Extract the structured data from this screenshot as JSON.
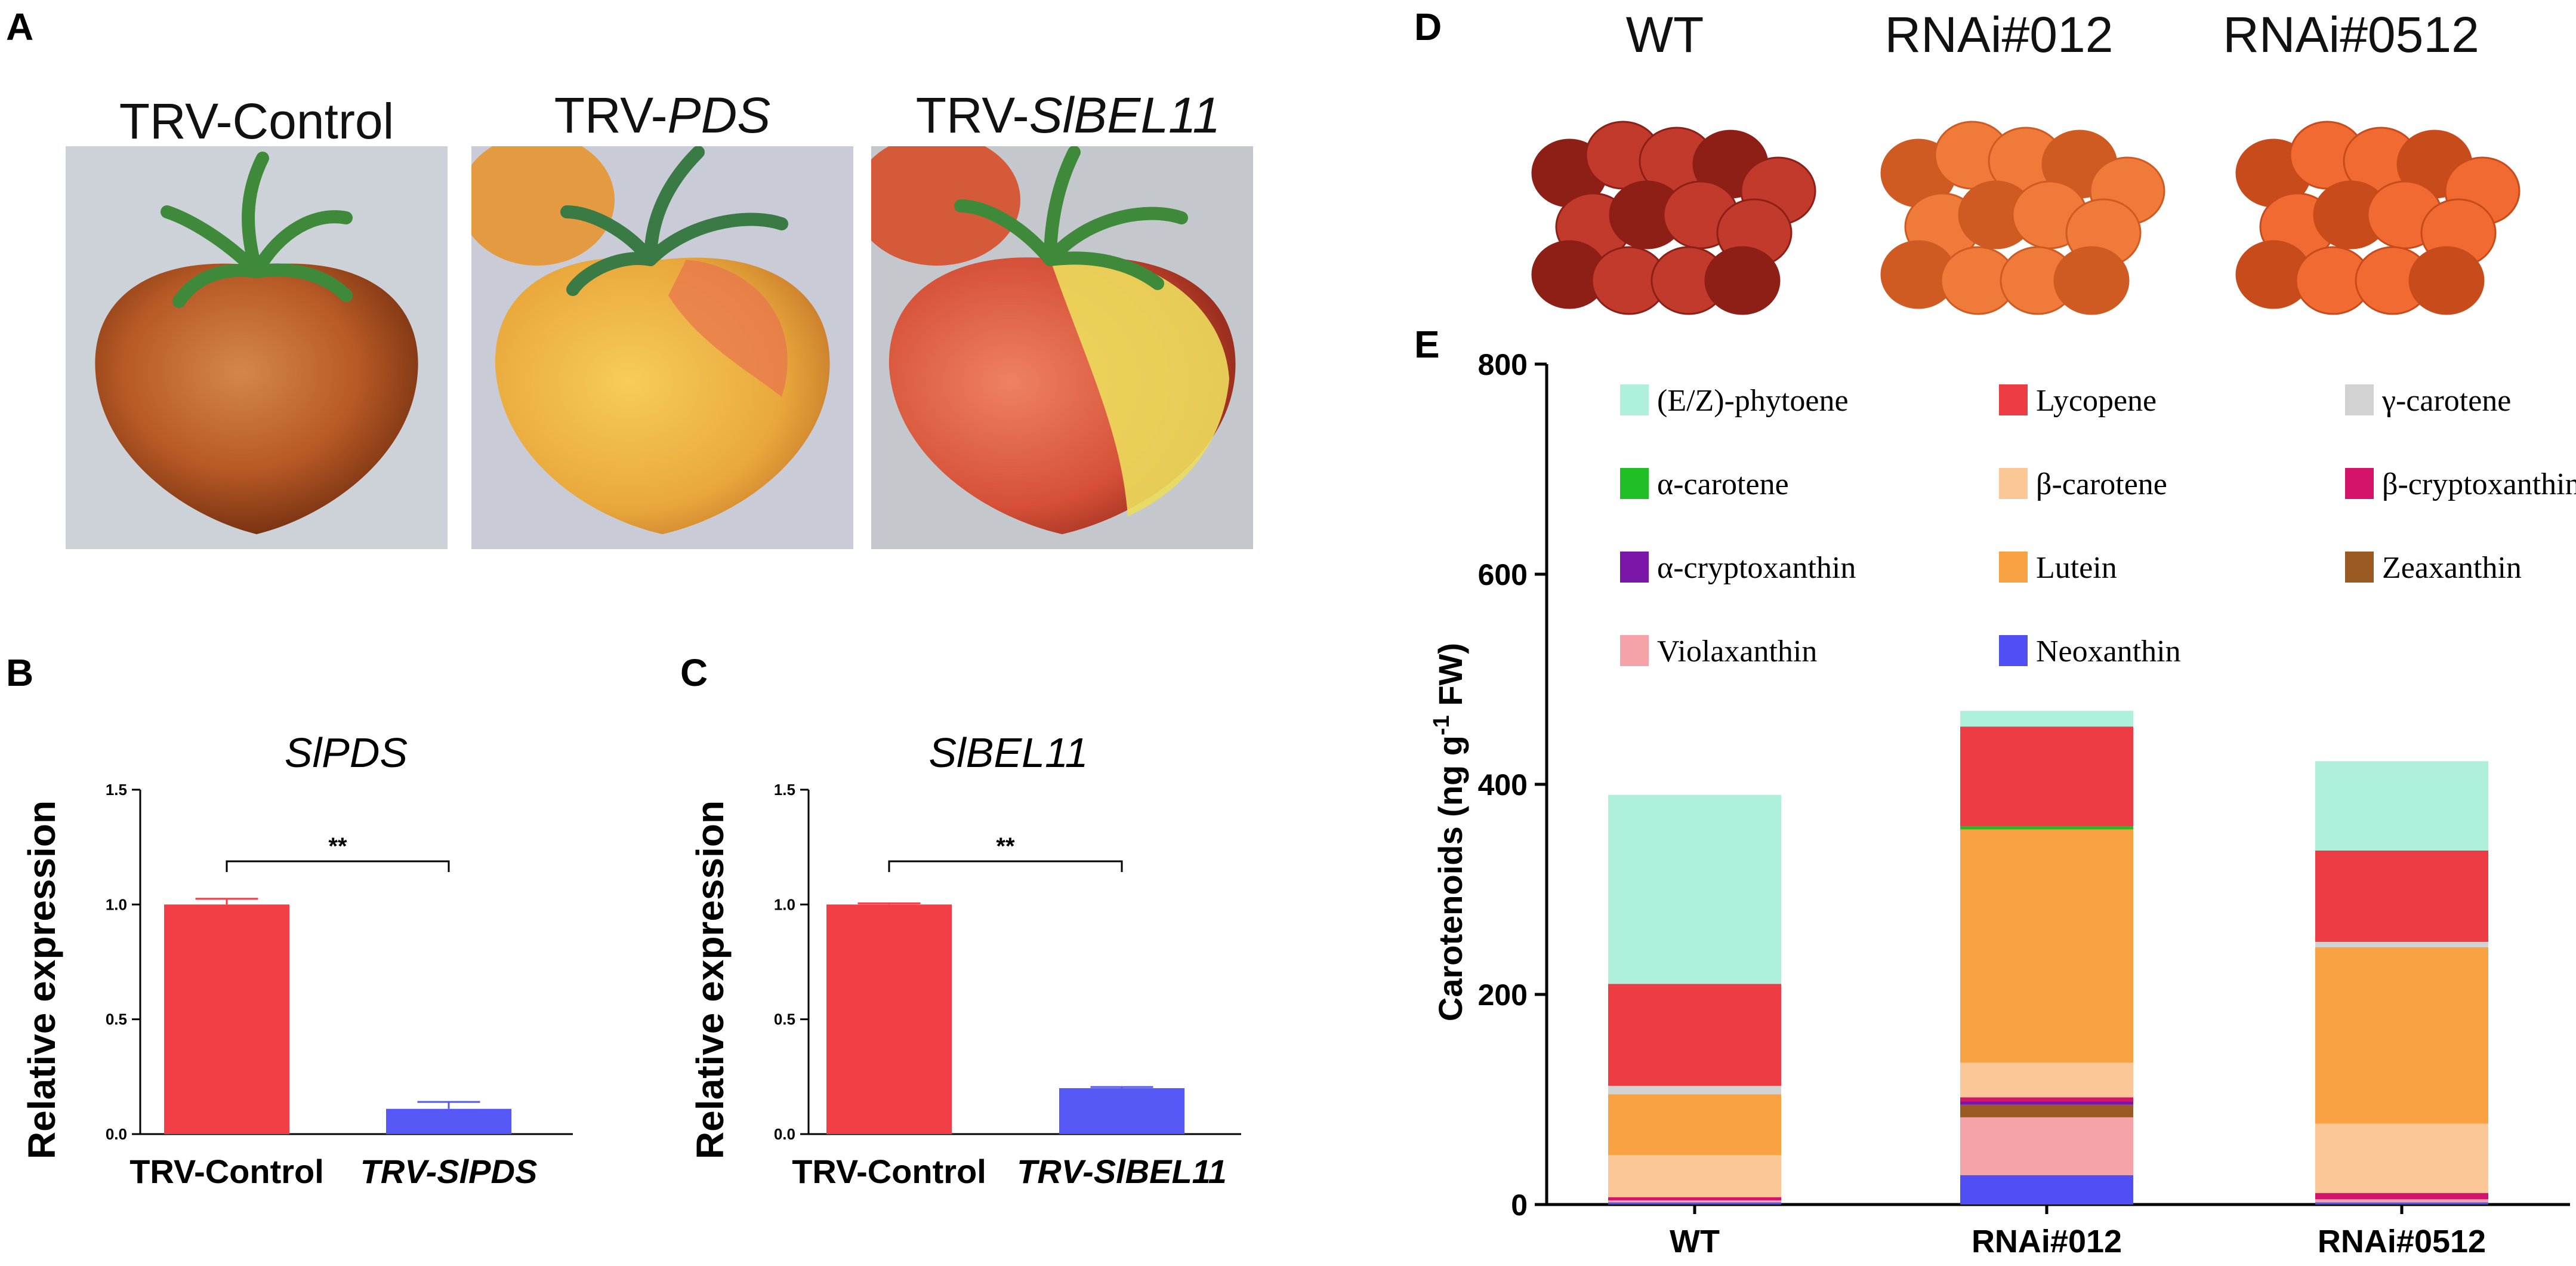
{
  "panels": {
    "a": "A",
    "b": "B",
    "c": "C",
    "d": "D",
    "e": "E"
  },
  "photos_a": [
    {
      "prefix": "TRV-",
      "italic": "Control",
      "italic_flag": false
    },
    {
      "prefix": "TRV-",
      "italic": "PDS",
      "italic_flag": true
    },
    {
      "prefix": "TRV-",
      "italic": "SlBEL11",
      "italic_flag": true
    }
  ],
  "photos_d": [
    "WT",
    "RNAi#012",
    "RNAi#0512"
  ],
  "colors": {
    "red_bar": "#f23f45",
    "blue_bar": "#5558f5",
    "phytoene": "#aef0dc",
    "lycopene": "#ee3c44",
    "gamma_carotene": "#d2d2d2",
    "alpha_carotene": "#1fbf25",
    "beta_carotene": "#fcc797",
    "beta_cryptoxanthin": "#d4136a",
    "alpha_cryptoxanthin": "#7a16a8",
    "lutein": "#f8a244",
    "zeaxanthin": "#9b5a22",
    "violaxanthin": "#f5a3a9",
    "neoxanthin": "#4f4ff4"
  },
  "chart_data": [
    {
      "id": "B",
      "type": "bar",
      "title": "SlPDS",
      "ylabel": "Relative expression",
      "categories": [
        "TRV-Control",
        "TRV-SlPDS"
      ],
      "values": [
        1.0,
        0.11
      ],
      "errors": [
        0.025,
        0.03
      ],
      "ylim": [
        0,
        1.5
      ],
      "yticks": [
        "0.0",
        "0.5",
        "1.0",
        "1.5"
      ],
      "significance": "**"
    },
    {
      "id": "C",
      "type": "bar",
      "title": "SlBEL11",
      "ylabel": "Relative expression",
      "categories": [
        "TRV-Control",
        "TRV-SlBEL11"
      ],
      "values": [
        1.0,
        0.2
      ],
      "errors": [
        0.005,
        0.005
      ],
      "ylim": [
        0,
        1.5
      ],
      "yticks": [
        "0.0",
        "0.5",
        "1.0",
        "1.5"
      ],
      "significance": "**"
    },
    {
      "id": "E",
      "type": "bar",
      "stacked": true,
      "ylabel": "Carotenoids (ng g-1 FW)",
      "ylabel_parts": [
        "Carotenoids",
        "(ng g",
        "-1",
        " FW)"
      ],
      "categories": [
        "WT",
        "RNAi#012",
        "RNAi#0512"
      ],
      "ylim": [
        0,
        800
      ],
      "yticks": [
        "0",
        "200",
        "400",
        "600",
        "800"
      ],
      "legend_position": "top",
      "series": [
        {
          "name": "Neoxanthin",
          "color_key": "neoxanthin",
          "values": [
            2,
            28,
            2
          ]
        },
        {
          "name": "Violaxanthin",
          "color_key": "violaxanthin",
          "values": [
            2,
            55,
            3
          ]
        },
        {
          "name": "Zeaxanthin",
          "color_key": "zeaxanthin",
          "values": [
            0,
            12,
            0
          ]
        },
        {
          "name": "α-cryptoxanthin",
          "color_key": "alpha_cryptoxanthin",
          "values": [
            0,
            3,
            0
          ]
        },
        {
          "name": "β-cryptoxanthin",
          "color_key": "beta_cryptoxanthin",
          "values": [
            3,
            4,
            6
          ]
        },
        {
          "name": "α-carotene",
          "color_key": "alpha_carotene",
          "values": [
            0,
            0,
            0
          ]
        },
        {
          "name": "β-carotene",
          "color_key": "beta_carotene",
          "values": [
            40,
            33,
            66
          ]
        },
        {
          "name": "Lutein",
          "color_key": "lutein",
          "values": [
            58,
            222,
            168
          ]
        },
        {
          "name": "γ-carotene",
          "color_key": "gamma_carotene",
          "values": [
            8,
            0,
            5
          ]
        },
        {
          "name": "α-carotene",
          "color_key": "alpha_carotene",
          "values": [
            0,
            3,
            0
          ]
        },
        {
          "name": "Lycopene",
          "color_key": "lycopene",
          "values": [
            97,
            95,
            87
          ]
        },
        {
          "name": "(E/Z)-phytoene",
          "color_key": "phytoene",
          "values": [
            180,
            15,
            85
          ]
        }
      ],
      "legend": [
        {
          "name": "(E/Z)-phytoene",
          "color_key": "phytoene"
        },
        {
          "name": "Lycopene",
          "color_key": "lycopene"
        },
        {
          "name": "γ-carotene",
          "color_key": "gamma_carotene"
        },
        {
          "name": "α-carotene",
          "color_key": "alpha_carotene"
        },
        {
          "name": "β-carotene",
          "color_key": "beta_carotene"
        },
        {
          "name": "β-cryptoxanthin",
          "color_key": "beta_cryptoxanthin"
        },
        {
          "name": "α-cryptoxanthin",
          "color_key": "alpha_cryptoxanthin"
        },
        {
          "name": "Lutein",
          "color_key": "lutein"
        },
        {
          "name": "Zeaxanthin",
          "color_key": "zeaxanthin"
        },
        {
          "name": "Violaxanthin",
          "color_key": "violaxanthin"
        },
        {
          "name": "Neoxanthin",
          "color_key": "neoxanthin"
        }
      ]
    }
  ]
}
